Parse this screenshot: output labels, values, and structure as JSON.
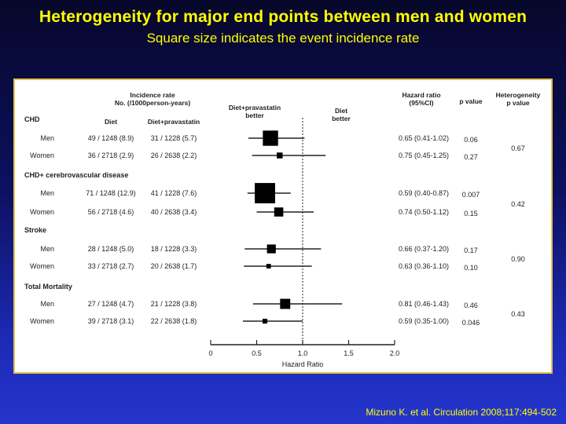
{
  "slide": {
    "title": "Heterogeneity for major end points between men and women",
    "subtitle": "Square size indicates the event incidence rate",
    "citation": "Mizuno K. et al. Circulation 2008;117:494-502"
  },
  "colors": {
    "background_top": "#07072a",
    "background_bottom": "#2535cc",
    "title_text": "#ffff00",
    "panel_border": "#e0c24a",
    "marks": "#000000"
  },
  "chart_data": {
    "type": "forest",
    "xlabel": "Hazard Ratio",
    "xlim": [
      0,
      2.0
    ],
    "xticks": [
      0,
      0.5,
      1.0,
      1.5,
      2.0
    ],
    "xtick_labels": [
      "0",
      "0.5",
      "1.0",
      "1.5",
      "2.0"
    ],
    "reference_line": 1.0,
    "headers": {
      "incidence": "Incidence rate\nNo. (/1000person-years)",
      "diet": "Diet",
      "diet_prava": "Diet+pravastatin",
      "prava_better": "Diet+pravastatin\nbetter",
      "diet_better": "Diet\nbetter",
      "hr": "Hazard ratio\n(95%CI)",
      "p": "p value",
      "heterogeneity": "Heterogeneity\np value"
    },
    "groups": [
      {
        "name": "CHD",
        "heterogeneity_p": "0.67",
        "rows": [
          {
            "label": "Men",
            "diet": "49 / 1248 (8.9)",
            "prava": "31 / 1228 (5.7)",
            "hr": 0.65,
            "lo": 0.41,
            "hi": 1.02,
            "hr_text": "0.65 (0.41-1.02)",
            "p": "0.06",
            "incidence": 5.7
          },
          {
            "label": "Women",
            "diet": "36 / 2718 (2.9)",
            "prava": "26 / 2638 (2.2)",
            "hr": 0.75,
            "lo": 0.45,
            "hi": 1.25,
            "hr_text": "0.75 (0.45-1.25)",
            "p": "0.27",
            "incidence": 2.2
          }
        ]
      },
      {
        "name": "CHD+ cerebrovascular disease",
        "heterogeneity_p": "0.42",
        "rows": [
          {
            "label": "Men",
            "diet": "71 / 1248 (12.9)",
            "prava": "41 / 1228 (7.6)",
            "hr": 0.59,
            "lo": 0.4,
            "hi": 0.87,
            "hr_text": "0.59 (0.40-0.87)",
            "p": "0.007",
            "incidence": 7.6
          },
          {
            "label": "Women",
            "diet": "56 / 2718 (4.6)",
            "prava": "40 / 2638 (3.4)",
            "hr": 0.74,
            "lo": 0.5,
            "hi": 1.12,
            "hr_text": "0.74 (0.50-1.12)",
            "p": "0.15",
            "incidence": 3.4
          }
        ]
      },
      {
        "name": "Stroke",
        "heterogeneity_p": "0.90",
        "rows": [
          {
            "label": "Men",
            "diet": "28 / 1248 (5.0)",
            "prava": "18 / 1228 (3.3)",
            "hr": 0.66,
            "lo": 0.37,
            "hi": 1.2,
            "hr_text": "0.66 (0.37-1.20)",
            "p": "0.17",
            "incidence": 3.3
          },
          {
            "label": "Women",
            "diet": "33 / 2718 (2.7)",
            "prava": "20 / 2638 (1.7)",
            "hr": 0.63,
            "lo": 0.36,
            "hi": 1.1,
            "hr_text": "0.63 (0.36-1.10)",
            "p": "0.10",
            "incidence": 1.7
          }
        ]
      },
      {
        "name": "Total Mortality",
        "heterogeneity_p": "0.43",
        "rows": [
          {
            "label": "Men",
            "diet": "27 / 1248 (4.7)",
            "prava": "21 / 1228 (3.8)",
            "hr": 0.81,
            "lo": 0.46,
            "hi": 1.43,
            "hr_text": "0.81 (0.46-1.43)",
            "p": "0.46",
            "incidence": 3.8
          },
          {
            "label": "Women",
            "diet": "39 / 2718 (3.1)",
            "prava": "22 / 2638 (1.8)",
            "hr": 0.59,
            "lo": 0.35,
            "hi": 1.0,
            "hr_text": "0.59 (0.35-1.00)",
            "p": "0.046",
            "incidence": 1.8
          }
        ]
      }
    ]
  }
}
